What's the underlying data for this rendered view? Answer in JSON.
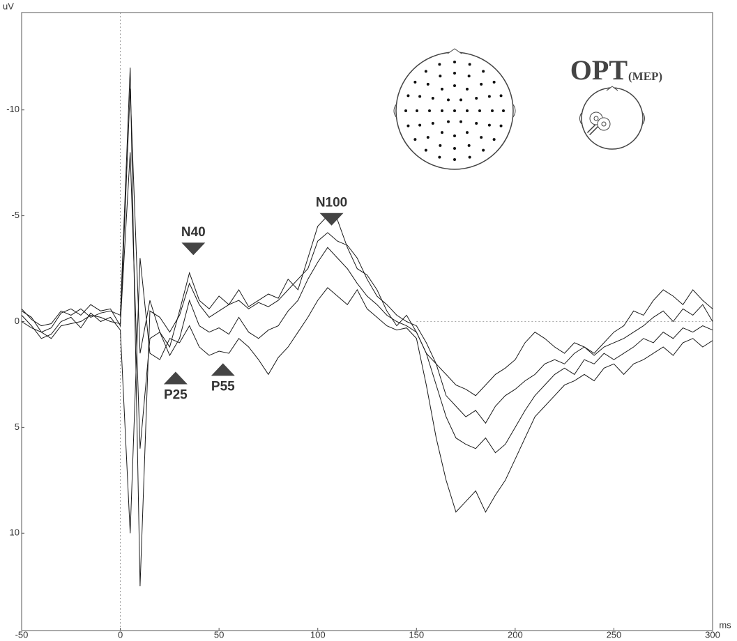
{
  "chart_data": {
    "type": "line",
    "y_label": "uV",
    "x_label": "ms",
    "x": [
      -50,
      -45,
      -40,
      -35,
      -30,
      -25,
      -20,
      -15,
      -10,
      -5,
      0,
      5,
      10,
      15,
      20,
      25,
      30,
      35,
      40,
      45,
      50,
      55,
      60,
      65,
      70,
      75,
      80,
      85,
      90,
      95,
      100,
      105,
      110,
      115,
      120,
      125,
      130,
      135,
      140,
      145,
      150,
      155,
      160,
      165,
      170,
      175,
      180,
      185,
      190,
      195,
      200,
      205,
      210,
      215,
      220,
      225,
      230,
      235,
      240,
      245,
      250,
      255,
      260,
      265,
      270,
      275,
      280,
      285,
      290,
      295,
      300
    ],
    "series": [
      {
        "color": "#1a1a1a",
        "values": [
          -0.5,
          -0.2,
          0.5,
          0.3,
          -0.4,
          -0.6,
          -0.3,
          -0.8,
          -0.5,
          -0.6,
          0.2,
          -11,
          1.5,
          -1,
          0.5,
          1.2,
          -0.5,
          -2.3,
          -1,
          -0.6,
          -1.2,
          -0.8,
          -1.5,
          -0.7,
          -1,
          -1.3,
          -1.1,
          -2,
          -1.5,
          -3,
          -4.5,
          -5,
          -4.8,
          -3.5,
          -2.5,
          -2.2,
          -1.5,
          -0.5,
          0.2,
          -0.3,
          0.5,
          1.5,
          2,
          2.5,
          3,
          3.2,
          3.5,
          3,
          2.5,
          2.2,
          1.8,
          1,
          0.5,
          0.8,
          1.2,
          1.5,
          1,
          1.2,
          1.5,
          1,
          0.5,
          0.2,
          -0.5,
          -0.3,
          -1,
          -1.5,
          -1.2,
          -0.8,
          -1.5,
          -1,
          -0.6
        ]
      },
      {
        "color": "#1a1a1a",
        "values": [
          -0.3,
          0.2,
          0.8,
          0.6,
          0,
          -0.2,
          0.3,
          -0.4,
          0,
          -0.2,
          0.4,
          10,
          -3,
          1.5,
          1.8,
          0.8,
          1,
          0.2,
          1.2,
          1.6,
          1.4,
          1.5,
          0.8,
          1.2,
          1.8,
          2.5,
          1.7,
          1.2,
          0.5,
          -0.2,
          -1,
          -1.6,
          -1.2,
          -0.8,
          -1.5,
          -0.6,
          -0.2,
          0.2,
          0.4,
          0.3,
          0.8,
          3,
          5.5,
          7.5,
          9,
          8.5,
          8,
          9,
          8.2,
          7.5,
          6.5,
          5.5,
          4.5,
          4,
          3.5,
          3,
          2.8,
          2.5,
          2.8,
          2.2,
          2,
          2.5,
          2,
          1.8,
          1.5,
          1.2,
          1.6,
          1,
          0.8,
          1.2,
          0.9
        ]
      },
      {
        "color": "#1a1a1a",
        "values": [
          0,
          0.3,
          0.5,
          0.8,
          0.2,
          0.1,
          0,
          -0.3,
          -0.2,
          0,
          0.1,
          -8,
          6,
          0.8,
          0.5,
          1.6,
          0.8,
          -1,
          0.2,
          0.5,
          0.3,
          0.6,
          -0.2,
          0.5,
          0.8,
          0.4,
          0.2,
          -0.5,
          -1,
          -2,
          -2.8,
          -3.5,
          -3,
          -2.5,
          -1.8,
          -1.2,
          -0.8,
          -0.3,
          0,
          0.2,
          0.5,
          1.5,
          3,
          4.5,
          5.5,
          5.8,
          6,
          5.5,
          6.2,
          5.8,
          5,
          4.2,
          3.5,
          3,
          2.5,
          2.2,
          2.5,
          1.8,
          2,
          1.5,
          1.8,
          1.5,
          1.2,
          0.8,
          1,
          0.5,
          0.8,
          0.3,
          0.5,
          0.2,
          0.4
        ]
      },
      {
        "color": "#1a1a1a",
        "values": [
          -0.6,
          -0.1,
          0.2,
          0.1,
          -0.5,
          -0.3,
          -0.6,
          -0.2,
          -0.4,
          -0.5,
          -0.3,
          -12,
          12.5,
          -0.5,
          -0.2,
          0.5,
          -0.3,
          -1.8,
          -0.8,
          -0.2,
          -0.5,
          -0.8,
          -1,
          -0.6,
          -0.9,
          -0.7,
          -1,
          -1.5,
          -2,
          -2.5,
          -3.8,
          -4.2,
          -3.8,
          -3.6,
          -3,
          -2,
          -1.2,
          -0.8,
          -0.3,
          0,
          0.2,
          1,
          2,
          3.5,
          4,
          4.5,
          4.2,
          4.8,
          4,
          3.5,
          3.2,
          2.8,
          2.5,
          2,
          1.8,
          2,
          1.5,
          1.2,
          1.6,
          1.2,
          1,
          0.8,
          0.5,
          0.2,
          -0.2,
          -0.5,
          0,
          -0.6,
          -0.3,
          -0.8,
          0
        ]
      }
    ],
    "xlim": [
      -50,
      300
    ],
    "xticks": [
      -50,
      0,
      50,
      100,
      150,
      200,
      250,
      300
    ],
    "ylim": [
      14.6,
      -14.6
    ],
    "yticks": [
      -10,
      -5,
      0,
      5,
      10
    ],
    "annotations": [
      {
        "text": "N40",
        "x": 37,
        "y": -3.4,
        "direction": "down"
      },
      {
        "text": "N100",
        "x": 107,
        "y": -4.8,
        "direction": "down"
      },
      {
        "text": "P25",
        "x": 28,
        "y": 2.7,
        "direction": "up"
      },
      {
        "text": "P55",
        "x": 52,
        "y": 2.3,
        "direction": "up"
      }
    ],
    "inset_title": "OPT",
    "inset_subtitle": "(MEP)"
  }
}
